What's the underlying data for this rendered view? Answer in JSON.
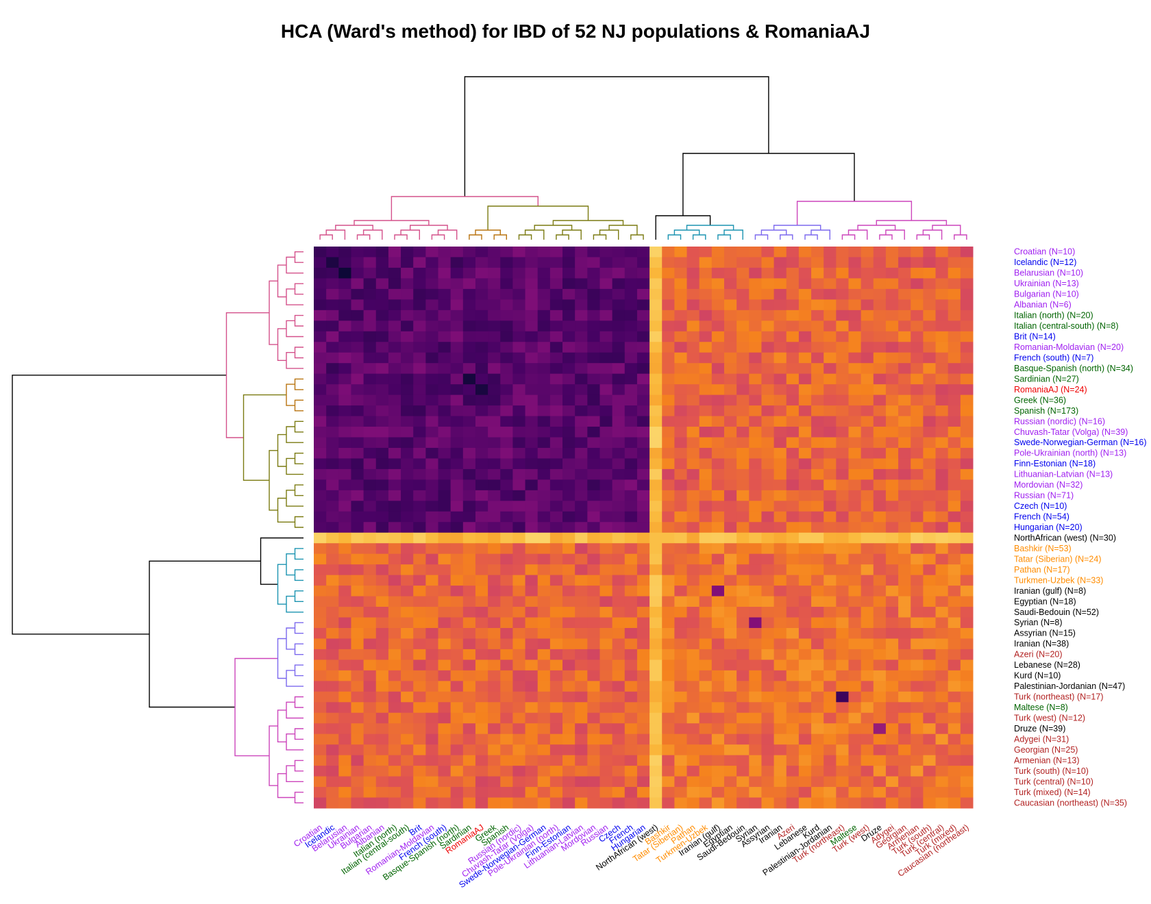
{
  "chart_data": {
    "type": "heatmap",
    "title": "HCA (Ward's method) for IBD of 52 NJ populations & RomaniaAJ",
    "xlabel": "",
    "ylabel": "",
    "labels": [
      "Croatian (N=10)",
      "Icelandic (N=12)",
      "Belarusian (N=10)",
      "Ukrainian (N=13)",
      "Bulgarian (N=10)",
      "Albanian (N=6)",
      "Italian (north) (N=20)",
      "Italian (central-south) (N=8)",
      "Brit (N=14)",
      "Romanian-Moldavian (N=20)",
      "French (south) (N=7)",
      "Basque-Spanish (north) (N=34)",
      "Sardinian (N=27)",
      "RomaniaAJ (N=24)",
      "Greek (N=36)",
      "Spanish (N=173)",
      "Russian (nordic) (N=16)",
      "Chuvash-Tatar (Volga) (N=39)",
      "Swede-Norwegian-German (N=16)",
      "Pole-Ukrainian (north) (N=13)",
      "Finn-Estonian (N=18)",
      "Lithuanian-Latvian (N=13)",
      "Mordovian (N=32)",
      "Russian (N=71)",
      "Czech (N=10)",
      "French (N=54)",
      "Hungarian (N=20)",
      "NorthAfrican (west) (N=30)",
      "Bashkir (N=53)",
      "Tatar (Siberian) (N=24)",
      "Pathan (N=17)",
      "Turkmen-Uzbek (N=33)",
      "Iranian (gulf) (N=8)",
      "Egyptian (N=18)",
      "Saudi-Bedouin (N=52)",
      "Syrian (N=8)",
      "Assyrian (N=15)",
      "Iranian (N=38)",
      "Azeri (N=20)",
      "Lebanese (N=28)",
      "Kurd (N=10)",
      "Palestinian-Jordanian (N=47)",
      "Turk (northeast) (N=17)",
      "Maltese (N=8)",
      "Turk (west) (N=12)",
      "Druze (N=39)",
      "Adygei (N=31)",
      "Georgian (N=25)",
      "Armenian (N=13)",
      "Turk (south) (N=10)",
      "Turk (central) (N=10)",
      "Turk (mixed) (N=14)",
      "Caucasian (northeast) (N=35)"
    ],
    "col_labels": [
      "Croatian",
      "Icelandic",
      "Belarusian",
      "Ukrainian",
      "Bulgarian",
      "Albanian",
      "Italian (north)",
      "Italian (central-south)",
      "Brit",
      "Romanian-Moldavian",
      "French (south)",
      "Basque-Spanish (north)",
      "Sardinian",
      "RomaniaAJ",
      "Greek",
      "Spanish",
      "Russian (nordic)",
      "Chuvash-Tatar (Volga)",
      "Swede-Norwegian-German",
      "Pole-Ukrainian (north)",
      "Finn-Estonian",
      "Lithuanian-Latvian",
      "Mordovian",
      "Russian",
      "Czech",
      "French",
      "Hungarian",
      "NorthAfrican (west)",
      "Bashkir",
      "Tatar (Siberian)",
      "Pathan",
      "Turkmen-Uzbek",
      "Iranian (gulf)",
      "Egyptian",
      "Saudi-Bedouin",
      "Syrian",
      "Assyrian",
      "Iranian",
      "Azeri",
      "Lebanese",
      "Kurd",
      "Palestinian-Jordanian",
      "Turk (northeast)",
      "Maltese",
      "Turk (west)",
      "Druze",
      "Adygei",
      "Georgian",
      "Armenian",
      "Turk (south)",
      "Turk (central)",
      "Turk (mixed)",
      "Caucasian (northeast)"
    ],
    "label_colors": [
      "#a020f0",
      "#0000ee",
      "#a020f0",
      "#a020f0",
      "#a020f0",
      "#a020f0",
      "#006400",
      "#006400",
      "#0000ee",
      "#a020f0",
      "#0000ee",
      "#006400",
      "#006400",
      "#ee0000",
      "#006400",
      "#006400",
      "#a020f0",
      "#a020f0",
      "#0000ee",
      "#a020f0",
      "#0000ee",
      "#a020f0",
      "#a020f0",
      "#a020f0",
      "#0000ee",
      "#0000ee",
      "#0000ee",
      "#000000",
      "#ff8c00",
      "#ff8c00",
      "#ff8c00",
      "#ff8c00",
      "#000000",
      "#000000",
      "#000000",
      "#000000",
      "#000000",
      "#000000",
      "#b22222",
      "#000000",
      "#000000",
      "#000000",
      "#b22222",
      "#006400",
      "#b22222",
      "#000000",
      "#b22222",
      "#b22222",
      "#b22222",
      "#b22222",
      "#b22222",
      "#b22222",
      "#b22222"
    ],
    "clusters": [
      {
        "start": 0,
        "end": 11,
        "color": "#d4508a"
      },
      {
        "start": 12,
        "end": 15,
        "color": "#b8730f"
      },
      {
        "start": 16,
        "end": 26,
        "color": "#7a7a10"
      },
      {
        "start": 27,
        "end": 27,
        "color": "#1f9d1f"
      },
      {
        "start": 28,
        "end": 34,
        "color": "#1a93b0"
      },
      {
        "start": 35,
        "end": 41,
        "color": "#7b68ee"
      },
      {
        "start": 42,
        "end": 52,
        "color": "#cc44bb"
      }
    ],
    "dendrogram_link_color": "#000000",
    "value_range": [
      0,
      1
    ],
    "colormap": "plasma-like (dark purple = high shared IBD, light yellow = low)",
    "blocks": {
      "eu_eu": 0.2,
      "eu_rest": 0.62,
      "rest_rest": 0.66,
      "nafr_row": 0.86
    },
    "diagonal_highlights": [
      {
        "index": 1,
        "value": 0.04
      },
      {
        "index": 2,
        "value": 0.0
      },
      {
        "index": 12,
        "value": 0.02
      },
      {
        "index": 13,
        "value": 0.03
      },
      {
        "index": 32,
        "value": 0.3
      },
      {
        "index": 35,
        "value": 0.3
      },
      {
        "index": 42,
        "value": 0.12
      },
      {
        "index": 45,
        "value": 0.35
      }
    ],
    "legend": "none",
    "grid": false
  }
}
